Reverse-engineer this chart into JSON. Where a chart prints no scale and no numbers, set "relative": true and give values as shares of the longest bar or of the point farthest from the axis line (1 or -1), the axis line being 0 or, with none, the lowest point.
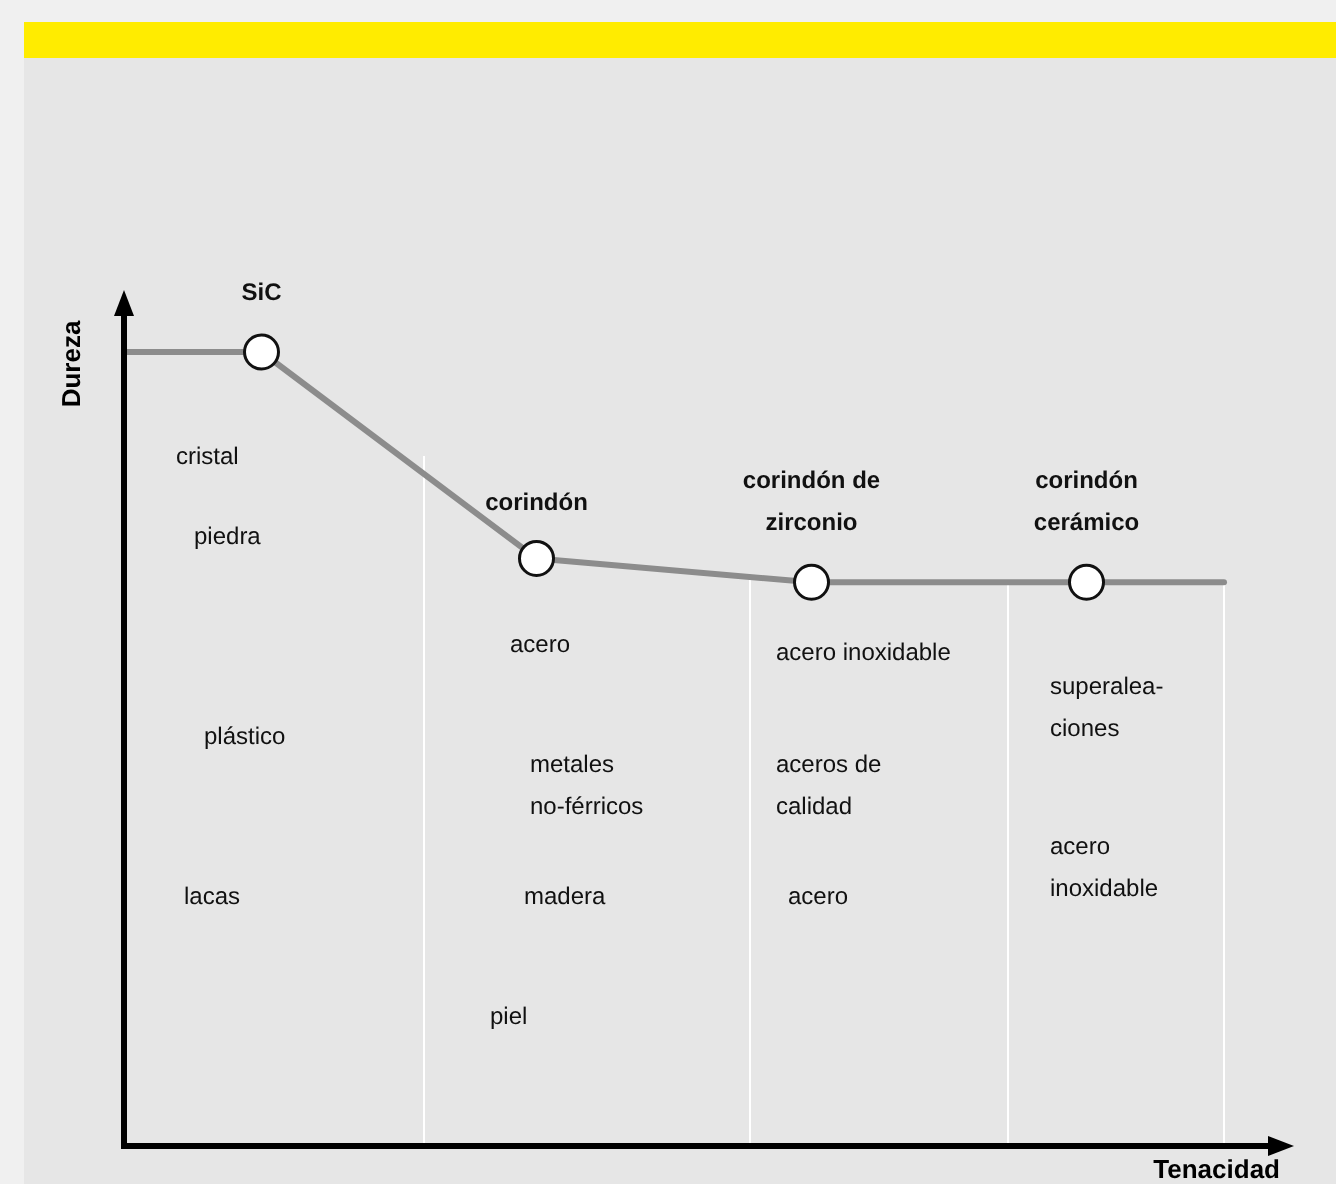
{
  "chart_data": {
    "type": "line",
    "relative": true,
    "xlabel": "Tenacidad",
    "ylabel": "Dureza",
    "color": "#8c8c8c",
    "marker": "circle",
    "categories": [
      null,
      null,
      null,
      null
    ],
    "values": [
      1,
      0.74,
      0.71,
      0.71
    ],
    "annotations": [
      "SiC",
      "corindón",
      "corindón de\nzirconio",
      "corindón\ncerámico",
      "cristal",
      "piedra",
      "plástico",
      "lacas",
      "acero",
      "metales\nno-férricos",
      "madera",
      "piel",
      "acero inoxidable",
      "aceros de\ncalidad",
      "acero",
      "superalea-\nciones",
      "acero\ninoxidable"
    ]
  }
}
